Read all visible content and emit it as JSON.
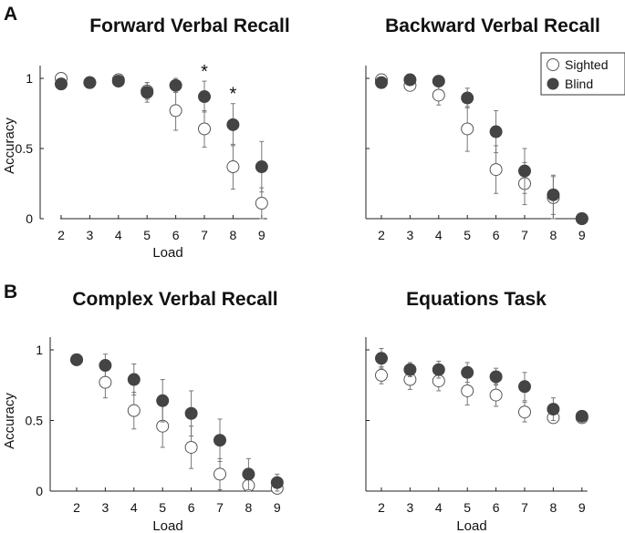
{
  "panel_labels": [
    "A",
    "B"
  ],
  "legend": {
    "sighted_label": "Sighted",
    "blind_label": "Blind"
  },
  "colors": {
    "blind": "#444444",
    "sighted_fill": "#ffffff",
    "sighted_stroke": "#555555",
    "axis": "#222222",
    "error": "#777777"
  },
  "chart_data": [
    {
      "type": "scatter",
      "title": "Forward Verbal Recall",
      "xlabel": "Load",
      "ylabel": "Accuracy",
      "ylim": [
        0,
        1.05
      ],
      "yticks": [
        "0",
        "0.5",
        "1"
      ],
      "x": [
        2,
        3,
        4,
        5,
        6,
        7,
        8,
        9
      ],
      "series": [
        {
          "name": "Sighted",
          "values": [
            1.0,
            0.97,
            0.99,
            0.91,
            0.77,
            0.64,
            0.37,
            0.11
          ],
          "errors": [
            0.02,
            0.02,
            0.02,
            0.06,
            0.14,
            0.13,
            0.16,
            0.11
          ]
        },
        {
          "name": "Blind",
          "values": [
            0.96,
            0.97,
            0.98,
            0.9,
            0.95,
            0.87,
            0.67,
            0.37
          ],
          "errors": [
            0.04,
            0.02,
            0.02,
            0.07,
            0.05,
            0.11,
            0.15,
            0.18
          ]
        }
      ],
      "annotations": [
        {
          "x": 7,
          "text": "*"
        },
        {
          "x": 8,
          "text": "*"
        }
      ]
    },
    {
      "type": "scatter",
      "title": "Backward Verbal Recall",
      "xlabel": "",
      "ylabel": "",
      "ylim": [
        0,
        1.05
      ],
      "yticks": [],
      "x": [
        2,
        3,
        4,
        5,
        6,
        7,
        8,
        9
      ],
      "series": [
        {
          "name": "Sighted",
          "values": [
            0.99,
            0.95,
            0.88,
            0.64,
            0.35,
            0.25,
            0.15,
            0.0
          ],
          "errors": [
            0.03,
            0.04,
            0.07,
            0.16,
            0.17,
            0.15,
            0.15,
            0.0
          ]
        },
        {
          "name": "Blind",
          "values": [
            0.97,
            0.99,
            0.98,
            0.86,
            0.62,
            0.34,
            0.17,
            0.0
          ],
          "errors": [
            0.03,
            0.02,
            0.02,
            0.07,
            0.15,
            0.16,
            0.14,
            0.0
          ]
        }
      ],
      "annotations": []
    },
    {
      "type": "scatter",
      "title": "Complex Verbal Recall",
      "xlabel": "Load",
      "ylabel": "Accuracy",
      "ylim": [
        0,
        1.05
      ],
      "yticks": [
        "0",
        "0.5",
        "1"
      ],
      "x": [
        2,
        3,
        4,
        5,
        6,
        7,
        8,
        9
      ],
      "series": [
        {
          "name": "Sighted",
          "values": [
            0.93,
            0.77,
            0.57,
            0.46,
            0.31,
            0.12,
            0.04,
            0.02
          ],
          "errors": [
            0.04,
            0.11,
            0.13,
            0.15,
            0.15,
            0.11,
            0.06,
            0.02
          ]
        },
        {
          "name": "Blind",
          "values": [
            0.93,
            0.89,
            0.79,
            0.64,
            0.55,
            0.36,
            0.12,
            0.06
          ],
          "errors": [
            0.04,
            0.08,
            0.11,
            0.15,
            0.16,
            0.15,
            0.11,
            0.06
          ]
        }
      ],
      "annotations": []
    },
    {
      "type": "scatter",
      "title": "Equations Task",
      "xlabel": "Load",
      "ylabel": "",
      "ylim": [
        0,
        1.05
      ],
      "yticks": [],
      "x": [
        2,
        3,
        4,
        5,
        6,
        7,
        8,
        9
      ],
      "series": [
        {
          "name": "Sighted",
          "values": [
            0.82,
            0.79,
            0.78,
            0.71,
            0.68,
            0.56,
            0.52,
            0.52
          ],
          "errors": [
            0.06,
            0.07,
            0.07,
            0.1,
            0.08,
            0.07,
            0.03,
            0.02
          ]
        },
        {
          "name": "Blind",
          "values": [
            0.94,
            0.86,
            0.86,
            0.84,
            0.81,
            0.74,
            0.58,
            0.53
          ],
          "errors": [
            0.07,
            0.05,
            0.06,
            0.07,
            0.06,
            0.1,
            0.08,
            0.03
          ]
        }
      ],
      "annotations": []
    }
  ]
}
